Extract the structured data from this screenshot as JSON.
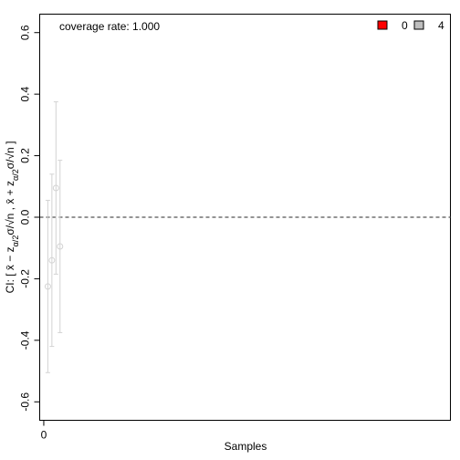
{
  "chart_data": {
    "type": "scatter",
    "xlabel": "Samples",
    "ylabel": {
      "prefix": "CI: [ x̄ − z",
      "sub1": "α/2",
      "mid1": "σ/√n , x̄ + z",
      "sub2": "α/2",
      "mid2": "σ/√n ]"
    },
    "annotation": "coverage rate: 1.000",
    "xlim": [
      -1,
      100
    ],
    "ylim": [
      -0.66,
      0.66
    ],
    "x_ticks": [
      0
    ],
    "y_ticks": [
      -0.6,
      -0.4,
      -0.2,
      0.0,
      0.2,
      0.4,
      0.6
    ],
    "y_tick_labels": [
      "-0.6",
      "-0.4",
      "-0.2",
      "0.0",
      "0.2",
      "0.4",
      "0.6"
    ],
    "reference_line": 0,
    "legend": {
      "position": "top-right",
      "items": [
        {
          "label": "0",
          "color": "#ff0000"
        },
        {
          "label": "4",
          "color": "#bebebe"
        }
      ]
    },
    "series": [
      {
        "color": "#d3d3d3",
        "points": [
          {
            "x": 1,
            "y": -0.225,
            "lower": -0.505,
            "upper": 0.055
          },
          {
            "x": 2,
            "y": -0.14,
            "lower": -0.42,
            "upper": 0.14
          },
          {
            "x": 3,
            "y": 0.095,
            "lower": -0.185,
            "upper": 0.375
          },
          {
            "x": 4,
            "y": -0.095,
            "lower": -0.375,
            "upper": 0.185
          }
        ]
      }
    ],
    "colors": {
      "axis": "#000000",
      "reference_line": "#555555",
      "interval": "#d3d3d3"
    }
  }
}
